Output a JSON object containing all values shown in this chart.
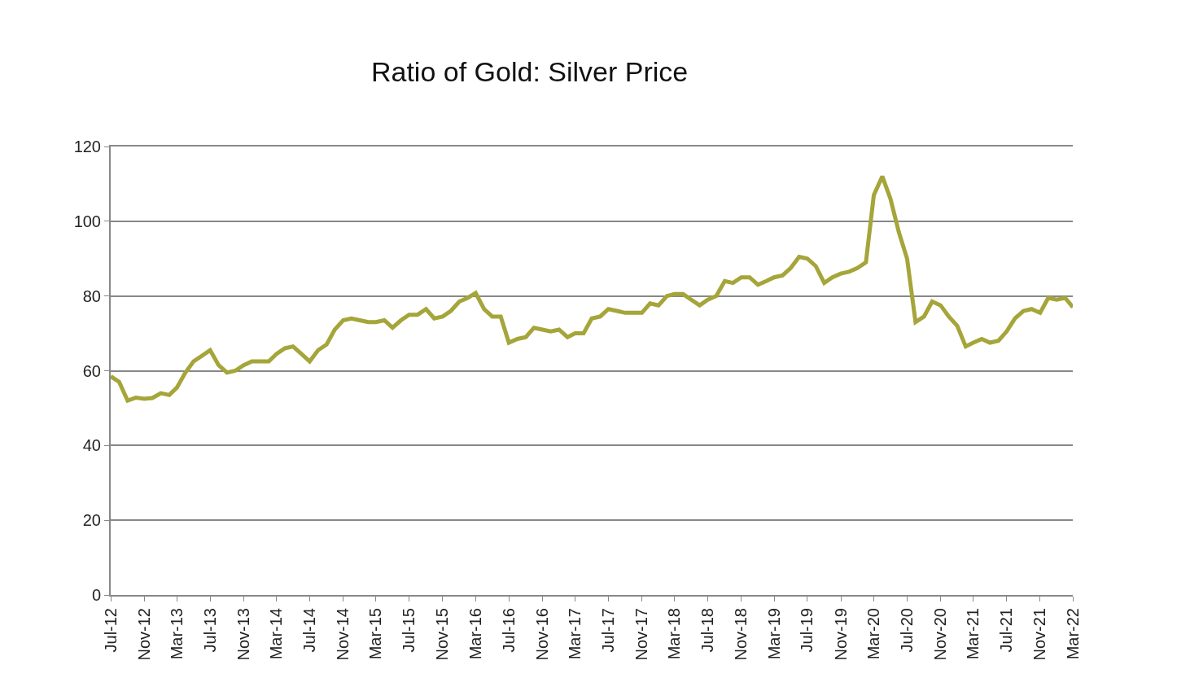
{
  "chart_data": {
    "type": "line",
    "title": "Ratio of Gold: Silver Price",
    "x": [
      "2012-07",
      "2012-08",
      "2012-09",
      "2012-10",
      "2012-11",
      "2012-12",
      "2013-01",
      "2013-02",
      "2013-03",
      "2013-04",
      "2013-05",
      "2013-06",
      "2013-07",
      "2013-08",
      "2013-09",
      "2013-10",
      "2013-11",
      "2013-12",
      "2014-01",
      "2014-02",
      "2014-03",
      "2014-04",
      "2014-05",
      "2014-06",
      "2014-07",
      "2014-08",
      "2014-09",
      "2014-10",
      "2014-11",
      "2014-12",
      "2015-01",
      "2015-02",
      "2015-03",
      "2015-04",
      "2015-05",
      "2015-06",
      "2015-07",
      "2015-08",
      "2015-09",
      "2015-10",
      "2015-11",
      "2015-12",
      "2016-01",
      "2016-02",
      "2016-03",
      "2016-04",
      "2016-05",
      "2016-06",
      "2016-07",
      "2016-08",
      "2016-09",
      "2016-10",
      "2016-11",
      "2016-12",
      "2017-01",
      "2017-02",
      "2017-03",
      "2017-04",
      "2017-05",
      "2017-06",
      "2017-07",
      "2017-08",
      "2017-09",
      "2017-10",
      "2017-11",
      "2017-12",
      "2018-01",
      "2018-02",
      "2018-03",
      "2018-04",
      "2018-05",
      "2018-06",
      "2018-07",
      "2018-08",
      "2018-09",
      "2018-10",
      "2018-11",
      "2018-12",
      "2019-01",
      "2019-02",
      "2019-03",
      "2019-04",
      "2019-05",
      "2019-06",
      "2019-07",
      "2019-08",
      "2019-09",
      "2019-10",
      "2019-11",
      "2019-12",
      "2020-01",
      "2020-02",
      "2020-03",
      "2020-04",
      "2020-05",
      "2020-06",
      "2020-07",
      "2020-08",
      "2020-09",
      "2020-10",
      "2020-11",
      "2020-12",
      "2021-01",
      "2021-02",
      "2021-03",
      "2021-04",
      "2021-05",
      "2021-06",
      "2021-07",
      "2021-08",
      "2021-09",
      "2021-10",
      "2021-11",
      "2021-12",
      "2022-01",
      "2022-02",
      "2022-03"
    ],
    "series": [
      {
        "color": "#a5a53a",
        "values": [
          58.5,
          57,
          52,
          52.8,
          52.5,
          52.7,
          54,
          53.5,
          55.5,
          59.5,
          62.5,
          64,
          65.5,
          61.5,
          59.5,
          60,
          61.5,
          62.5,
          62.5,
          62.5,
          64.5,
          66,
          66.5,
          64.5,
          62.5,
          65.5,
          67,
          71,
          73.5,
          74,
          73.5,
          73,
          73,
          73.5,
          71.5,
          73.5,
          75,
          75,
          76.5,
          74,
          74.5,
          76,
          78.5,
          79.5,
          80.8,
          76.5,
          74.5,
          74.5,
          67.5,
          68.5,
          69,
          71.5,
          71,
          70.5,
          71,
          69,
          70,
          70,
          74,
          74.5,
          76.5,
          76,
          75.5,
          75.5,
          75.5,
          78,
          77.5,
          80,
          80.5,
          80.5,
          79,
          77.5,
          79,
          80,
          84,
          83.5,
          85,
          85,
          83,
          84,
          85,
          85.5,
          87.5,
          90.5,
          90,
          88,
          83.5,
          85,
          86,
          86.5,
          87.5,
          89,
          107,
          112,
          106,
          97,
          90,
          73,
          74.5,
          78.5,
          77.5,
          74.5,
          72,
          66.5,
          67.5,
          68.5,
          67.5,
          68,
          70.5,
          74,
          76,
          76.5,
          75.5,
          79.5,
          79,
          79.5,
          77
        ]
      }
    ],
    "xlim": [
      "2012-07",
      "2022-03"
    ],
    "xticks": [
      {
        "value": "2012-07",
        "label": "Jul-12"
      },
      {
        "value": "2012-11",
        "label": "Nov-12"
      },
      {
        "value": "2013-03",
        "label": "Mar-13"
      },
      {
        "value": "2013-07",
        "label": "Jul-13"
      },
      {
        "value": "2013-11",
        "label": "Nov-13"
      },
      {
        "value": "2014-03",
        "label": "Mar-14"
      },
      {
        "value": "2014-07",
        "label": "Jul-14"
      },
      {
        "value": "2014-11",
        "label": "Nov-14"
      },
      {
        "value": "2015-03",
        "label": "Mar-15"
      },
      {
        "value": "2015-07",
        "label": "Jul-15"
      },
      {
        "value": "2015-11",
        "label": "Nov-15"
      },
      {
        "value": "2016-03",
        "label": "Mar-16"
      },
      {
        "value": "2016-07",
        "label": "Jul-16"
      },
      {
        "value": "2016-11",
        "label": "Nov-16"
      },
      {
        "value": "2017-03",
        "label": "Mar-17"
      },
      {
        "value": "2017-07",
        "label": "Jul-17"
      },
      {
        "value": "2017-11",
        "label": "Nov-17"
      },
      {
        "value": "2018-03",
        "label": "Mar-18"
      },
      {
        "value": "2018-07",
        "label": "Jul-18"
      },
      {
        "value": "2018-11",
        "label": "Nov-18"
      },
      {
        "value": "2019-03",
        "label": "Mar-19"
      },
      {
        "value": "2019-07",
        "label": "Jul-19"
      },
      {
        "value": "2019-11",
        "label": "Nov-19"
      },
      {
        "value": "2020-03",
        "label": "Mar-20"
      },
      {
        "value": "2020-07",
        "label": "Jul-20"
      },
      {
        "value": "2020-11",
        "label": "Nov-20"
      },
      {
        "value": "2021-03",
        "label": "Mar-21"
      },
      {
        "value": "2021-07",
        "label": "Jul-21"
      },
      {
        "value": "2021-11",
        "label": "Nov-21"
      },
      {
        "value": "2022-03",
        "label": "Mar-22"
      }
    ],
    "ylim": [
      0,
      120
    ],
    "yticks": [
      0,
      20,
      40,
      60,
      80,
      100,
      120
    ],
    "grid": "y",
    "marker": "none",
    "line_style": "solid"
  }
}
